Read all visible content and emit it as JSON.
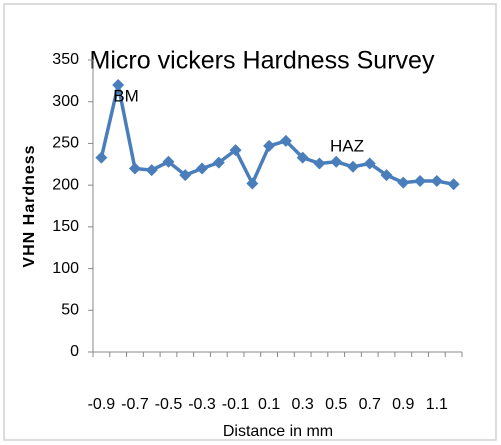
{
  "chart_data": {
    "type": "line",
    "title": "Micro vickers Hardness Survey",
    "x_label": "Distance in mm",
    "y_label": "VHN  Hardness",
    "annotations": [
      "BM",
      "HAZ"
    ],
    "categories": [
      "-0.9",
      null,
      "-0.7",
      null,
      "-0.5",
      null,
      "-0.3",
      null,
      "-0.1",
      null,
      "0.1",
      null,
      "0.3",
      null,
      "0.5",
      null,
      "0.7",
      null,
      "0.9",
      null,
      "1.1",
      null
    ],
    "series": [
      {
        "name": "VHN Hardness",
        "color": "#4a7ebb",
        "values": [
          233,
          320,
          220,
          218,
          228,
          212,
          220,
          227,
          242,
          202,
          247,
          253,
          233,
          226,
          228,
          222,
          226,
          212,
          203,
          205,
          205,
          201
        ]
      }
    ],
    "ylim": [
      0,
      350
    ],
    "yticks": [
      0,
      50,
      100,
      150,
      200,
      250,
      300,
      350
    ],
    "grid": false
  }
}
